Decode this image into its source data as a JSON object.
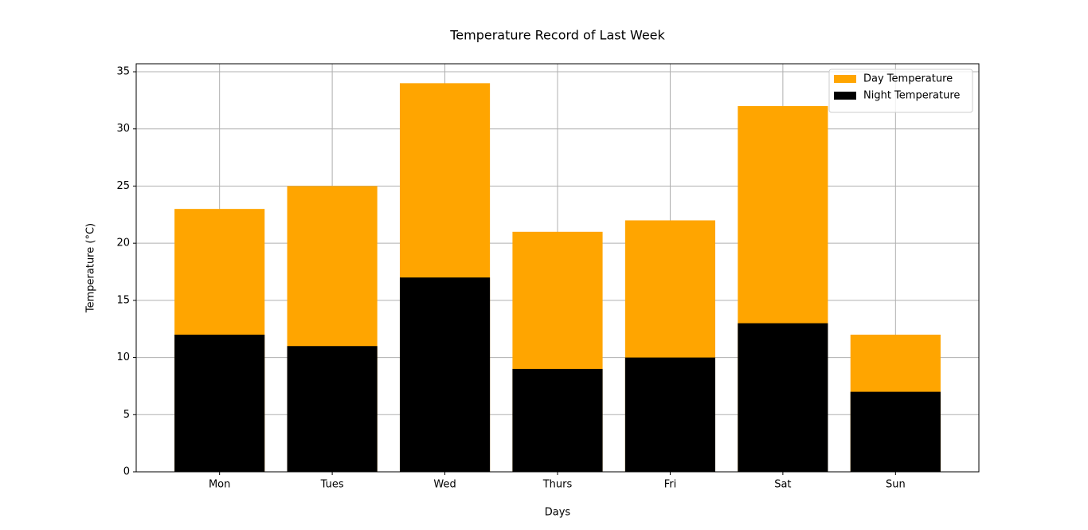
{
  "chart_data": {
    "type": "bar",
    "title": "Temperature Record of Last Week",
    "x_label": "Days",
    "y_label": "Temperature (°C)",
    "categories": [
      "Mon",
      "Tues",
      "Wed",
      "Thurs",
      "Fri",
      "Sat",
      "Sun"
    ],
    "series": [
      {
        "name": "Day Temperature",
        "color": "#ffa500",
        "values": [
          23,
          25,
          34,
          21,
          22,
          32,
          12
        ]
      },
      {
        "name": "Night Temperature",
        "color": "#000000",
        "values": [
          12,
          11,
          17,
          9,
          10,
          13,
          7
        ]
      }
    ],
    "ylim": [
      0,
      35.7
    ],
    "yticks": [
      0,
      5,
      10,
      15,
      20,
      25,
      30,
      35
    ],
    "grid": true,
    "legend": "upper right"
  }
}
